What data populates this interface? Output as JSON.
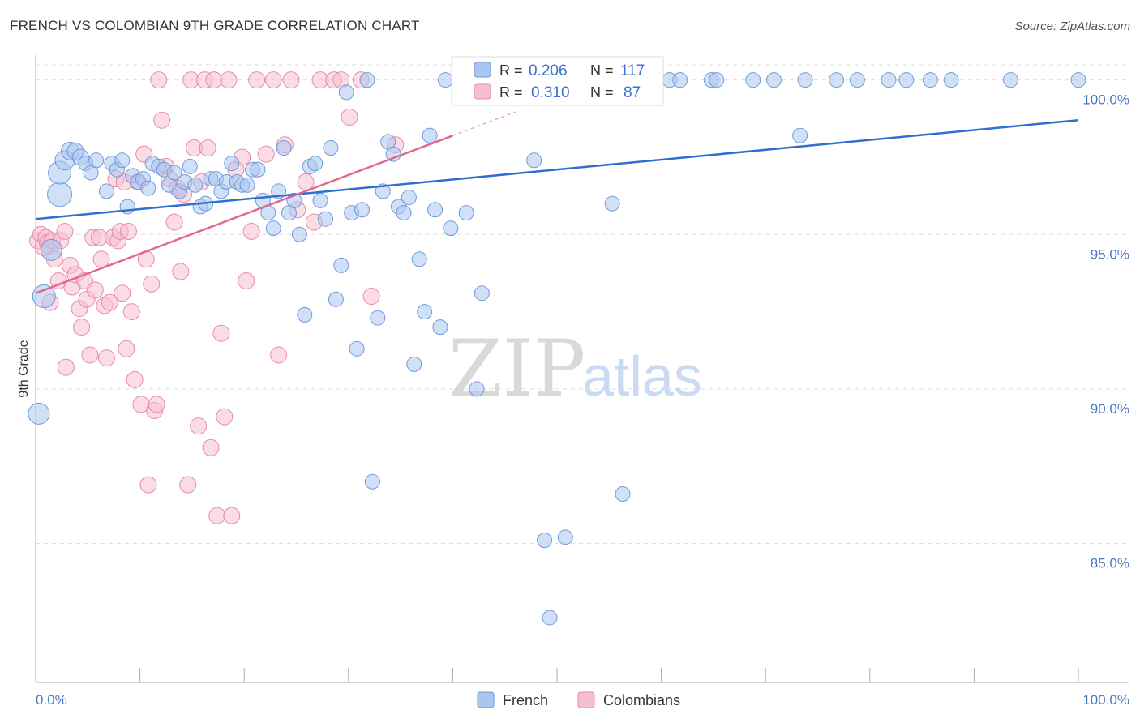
{
  "title": "FRENCH VS COLOMBIAN 9TH GRADE CORRELATION CHART",
  "source": "Source: ZipAtlas.com",
  "watermark": {
    "zip": "ZIP",
    "atlas": "atlas"
  },
  "colors": {
    "french_fill": "#a9c6f0",
    "french_stroke": "#6f9ad9",
    "french_line": "#2f6fd0",
    "colombian_fill": "#f6bfd0",
    "colombian_stroke": "#e98aaa",
    "colombian_line": "#e2668f",
    "tick_label": "#4a77c8",
    "grid": "#dddddd"
  },
  "legend_top": {
    "rows": [
      {
        "r_label": "R =",
        "r_value": "0.206",
        "n_label": "N =",
        "n_value": "117"
      },
      {
        "r_label": "R =",
        "r_value": "0.310",
        "n_label": "N =",
        "n_value": "87"
      }
    ]
  },
  "legend_bottom": [
    "French",
    "Colombians"
  ],
  "chart_data": {
    "type": "scatter",
    "title": "FRENCH VS COLOMBIAN 9TH GRADE CORRELATION CHART",
    "xlabel": "",
    "ylabel": "9th Grade",
    "xlim": [
      0,
      100
    ],
    "ylim": [
      80.5,
      100.7
    ],
    "x_tick_labels": [
      "0.0%",
      "100.0%"
    ],
    "y_ticks": [
      85,
      90,
      95,
      100
    ],
    "y_tick_labels": [
      "85.0%",
      "90.0%",
      "95.0%",
      "100.0%"
    ],
    "grid": true,
    "legend": "bottom-center",
    "series": [
      {
        "name": "French",
        "stats": {
          "R": 0.206,
          "N": 117
        },
        "trend": {
          "x": [
            0,
            100
          ],
          "y": [
            95.5,
            98.7
          ]
        },
        "points": [
          [
            0.3,
            89.2,
            13
          ],
          [
            0.8,
            93,
            14
          ],
          [
            1.5,
            94.5,
            13
          ],
          [
            2.3,
            96.3,
            15
          ],
          [
            2.3,
            97,
            14
          ],
          [
            2.8,
            97.4,
            12
          ],
          [
            3.3,
            97.7,
            11
          ],
          [
            3.8,
            97.7,
            10
          ],
          [
            4.3,
            97.5,
            10
          ],
          [
            4.8,
            97.3,
            9
          ],
          [
            5.3,
            97,
            9
          ],
          [
            5.8,
            97.4,
            9
          ],
          [
            6.8,
            96.4,
            9
          ],
          [
            7.3,
            97.3,
            9
          ],
          [
            7.8,
            97.1,
            9
          ],
          [
            8.3,
            97.4,
            9
          ],
          [
            8.8,
            95.9,
            9
          ],
          [
            9.3,
            96.9,
            9
          ],
          [
            9.8,
            96.7,
            9
          ],
          [
            10.3,
            96.8,
            9
          ],
          [
            10.8,
            96.5,
            9
          ],
          [
            11.2,
            97.3,
            9
          ],
          [
            11.8,
            97.2,
            9
          ],
          [
            12.3,
            97.1,
            9
          ],
          [
            12.8,
            96.6,
            9
          ],
          [
            13.3,
            97,
            9
          ],
          [
            13.8,
            96.4,
            9
          ],
          [
            14.3,
            96.7,
            9
          ],
          [
            14.8,
            97.2,
            9
          ],
          [
            15.3,
            96.6,
            9
          ],
          [
            15.8,
            95.9,
            9
          ],
          [
            16.3,
            96,
            9
          ],
          [
            16.8,
            96.8,
            9
          ],
          [
            17.3,
            96.8,
            9
          ],
          [
            17.8,
            96.4,
            9
          ],
          [
            18.3,
            96.7,
            9
          ],
          [
            18.8,
            97.3,
            9
          ],
          [
            19.3,
            96.7,
            9
          ],
          [
            19.8,
            96.6,
            9
          ],
          [
            20.3,
            96.6,
            9
          ],
          [
            20.8,
            97.1,
            9
          ],
          [
            21.3,
            97.1,
            9
          ],
          [
            21.8,
            96.1,
            9
          ],
          [
            22.3,
            95.7,
            9
          ],
          [
            22.8,
            95.2,
            9
          ],
          [
            23.3,
            96.4,
            9
          ],
          [
            23.8,
            97.8,
            9
          ],
          [
            24.3,
            95.7,
            9
          ],
          [
            24.8,
            96.1,
            9
          ],
          [
            25.3,
            95,
            9
          ],
          [
            25.8,
            92.4,
            9
          ],
          [
            26.3,
            97.2,
            9
          ],
          [
            26.8,
            97.3,
            9
          ],
          [
            27.3,
            96.1,
            9
          ],
          [
            27.8,
            95.5,
            9
          ],
          [
            28.3,
            97.8,
            9
          ],
          [
            28.8,
            92.9,
            9
          ],
          [
            29.3,
            94,
            9
          ],
          [
            29.8,
            99.6,
            9
          ],
          [
            30.3,
            95.7,
            9
          ],
          [
            30.8,
            91.3,
            9
          ],
          [
            31.3,
            95.8,
            9
          ],
          [
            31.8,
            100,
            9
          ],
          [
            32.3,
            87,
            9
          ],
          [
            32.8,
            92.3,
            9
          ],
          [
            33.3,
            96.4,
            9
          ],
          [
            33.8,
            98,
            9
          ],
          [
            34.3,
            97.6,
            9
          ],
          [
            34.8,
            95.9,
            9
          ],
          [
            35.3,
            95.7,
            9
          ],
          [
            35.8,
            96.2,
            9
          ],
          [
            36.3,
            90.8,
            9
          ],
          [
            36.8,
            94.2,
            9
          ],
          [
            37.3,
            92.5,
            9
          ],
          [
            37.8,
            98.2,
            9
          ],
          [
            38.3,
            95.8,
            9
          ],
          [
            38.8,
            92,
            9
          ],
          [
            39.3,
            100,
            9
          ],
          [
            39.8,
            95.2,
            9
          ],
          [
            40.8,
            100,
            9
          ],
          [
            41.3,
            95.7,
            9
          ],
          [
            42.3,
            90,
            9
          ],
          [
            42.8,
            93.1,
            9
          ],
          [
            44.3,
            100,
            9
          ],
          [
            45.3,
            100,
            9
          ],
          [
            46.3,
            100,
            9
          ],
          [
            47.3,
            100,
            9
          ],
          [
            47.8,
            97.4,
            9
          ],
          [
            48.8,
            85.1,
            9
          ],
          [
            49.3,
            82.6,
            9
          ],
          [
            49.8,
            100,
            9
          ],
          [
            50.8,
            85.2,
            9
          ],
          [
            51.8,
            100,
            9
          ],
          [
            52.8,
            100,
            9
          ],
          [
            53.8,
            100,
            9
          ],
          [
            55.3,
            96,
            9
          ],
          [
            56.3,
            86.6,
            9
          ],
          [
            57.8,
            100,
            9
          ],
          [
            60.8,
            100,
            9
          ],
          [
            61.8,
            100,
            9
          ],
          [
            64.8,
            100,
            9
          ],
          [
            65.3,
            100,
            9
          ],
          [
            68.8,
            100,
            9
          ],
          [
            70.8,
            100,
            9
          ],
          [
            73.8,
            100,
            9
          ],
          [
            73.3,
            98.2,
            9
          ],
          [
            76.8,
            100,
            9
          ],
          [
            78.8,
            100,
            9
          ],
          [
            81.8,
            100,
            9
          ],
          [
            83.5,
            100,
            9
          ],
          [
            85.8,
            100,
            9
          ],
          [
            87.8,
            100,
            9
          ],
          [
            93.5,
            100,
            9
          ],
          [
            100,
            100,
            9
          ],
          [
            53.3,
            100,
            9
          ]
        ]
      },
      {
        "name": "Colombians",
        "stats": {
          "R": 0.31,
          "N": 87
        },
        "trend": {
          "x": [
            0,
            40
          ],
          "y": [
            93.1,
            98.2
          ]
        },
        "points": [
          [
            0.2,
            94.8,
            10
          ],
          [
            0.5,
            95,
            10
          ],
          [
            0.8,
            94.6,
            11
          ],
          [
            1,
            94.9,
            10
          ],
          [
            1.3,
            94.7,
            12
          ],
          [
            1.6,
            94.8,
            10
          ],
          [
            1.4,
            92.8,
            10
          ],
          [
            1.8,
            94.2,
            10
          ],
          [
            2.2,
            93.5,
            10
          ],
          [
            2.4,
            94.8,
            10
          ],
          [
            2.8,
            95.1,
            10
          ],
          [
            2.9,
            90.7,
            10
          ],
          [
            3.3,
            94,
            10
          ],
          [
            3.5,
            93.3,
            10
          ],
          [
            3.8,
            93.7,
            10
          ],
          [
            4.2,
            92.6,
            10
          ],
          [
            4.4,
            92,
            10
          ],
          [
            4.7,
            93.5,
            10
          ],
          [
            4.9,
            92.9,
            10
          ],
          [
            5.2,
            91.1,
            10
          ],
          [
            5.5,
            94.9,
            10
          ],
          [
            5.7,
            93.2,
            10
          ],
          [
            6.1,
            94.9,
            10
          ],
          [
            6.3,
            94.2,
            10
          ],
          [
            6.6,
            92.7,
            10
          ],
          [
            6.8,
            91,
            10
          ],
          [
            7.1,
            92.8,
            10
          ],
          [
            7.4,
            94.9,
            10
          ],
          [
            7.7,
            96.8,
            10
          ],
          [
            7.9,
            94.8,
            10
          ],
          [
            8.1,
            95.1,
            10
          ],
          [
            8.3,
            93.1,
            10
          ],
          [
            8.5,
            96.7,
            10
          ],
          [
            8.7,
            91.3,
            10
          ],
          [
            8.9,
            95.1,
            10
          ],
          [
            9.2,
            92.5,
            10
          ],
          [
            9.5,
            90.3,
            10
          ],
          [
            9.8,
            96.7,
            10
          ],
          [
            10.1,
            89.5,
            10
          ],
          [
            10.4,
            97.6,
            10
          ],
          [
            10.6,
            94.2,
            10
          ],
          [
            10.8,
            86.9,
            10
          ],
          [
            11.1,
            93.4,
            10
          ],
          [
            11.4,
            89.3,
            10
          ],
          [
            11.6,
            89.5,
            10
          ],
          [
            11.8,
            100,
            10
          ],
          [
            12.1,
            98.7,
            10
          ],
          [
            12.5,
            97.2,
            10
          ],
          [
            12.8,
            96.8,
            10
          ],
          [
            13.3,
            95.4,
            10
          ],
          [
            13.6,
            96.5,
            10
          ],
          [
            13.9,
            93.8,
            10
          ],
          [
            14.2,
            96.3,
            10
          ],
          [
            14.6,
            86.9,
            10
          ],
          [
            14.9,
            100,
            10
          ],
          [
            15.2,
            97.8,
            10
          ],
          [
            15.6,
            88.8,
            10
          ],
          [
            15.9,
            96.7,
            10
          ],
          [
            16.2,
            100,
            10
          ],
          [
            16.5,
            97.8,
            10
          ],
          [
            16.8,
            88.1,
            10
          ],
          [
            17.1,
            100,
            10
          ],
          [
            17.4,
            85.9,
            10
          ],
          [
            17.8,
            91.8,
            10
          ],
          [
            18.1,
            89.1,
            10
          ],
          [
            18.5,
            100,
            10
          ],
          [
            18.8,
            85.9,
            10
          ],
          [
            19.2,
            97.1,
            10
          ],
          [
            19.8,
            97.5,
            10
          ],
          [
            20.2,
            93.5,
            10
          ],
          [
            20.7,
            95.1,
            10
          ],
          [
            21.2,
            100,
            10
          ],
          [
            22.1,
            97.6,
            10
          ],
          [
            22.8,
            100,
            10
          ],
          [
            23.3,
            91.1,
            10
          ],
          [
            23.9,
            97.9,
            10
          ],
          [
            24.5,
            100,
            10
          ],
          [
            25.1,
            95.8,
            10
          ],
          [
            25.9,
            96.7,
            10
          ],
          [
            26.7,
            95.4,
            10
          ],
          [
            27.3,
            100,
            10
          ],
          [
            28.6,
            100,
            10
          ],
          [
            29.3,
            100,
            10
          ],
          [
            30.1,
            98.8,
            10
          ],
          [
            31.2,
            100,
            10
          ],
          [
            32.2,
            93,
            10
          ],
          [
            34.5,
            97.9,
            10
          ]
        ]
      }
    ]
  }
}
